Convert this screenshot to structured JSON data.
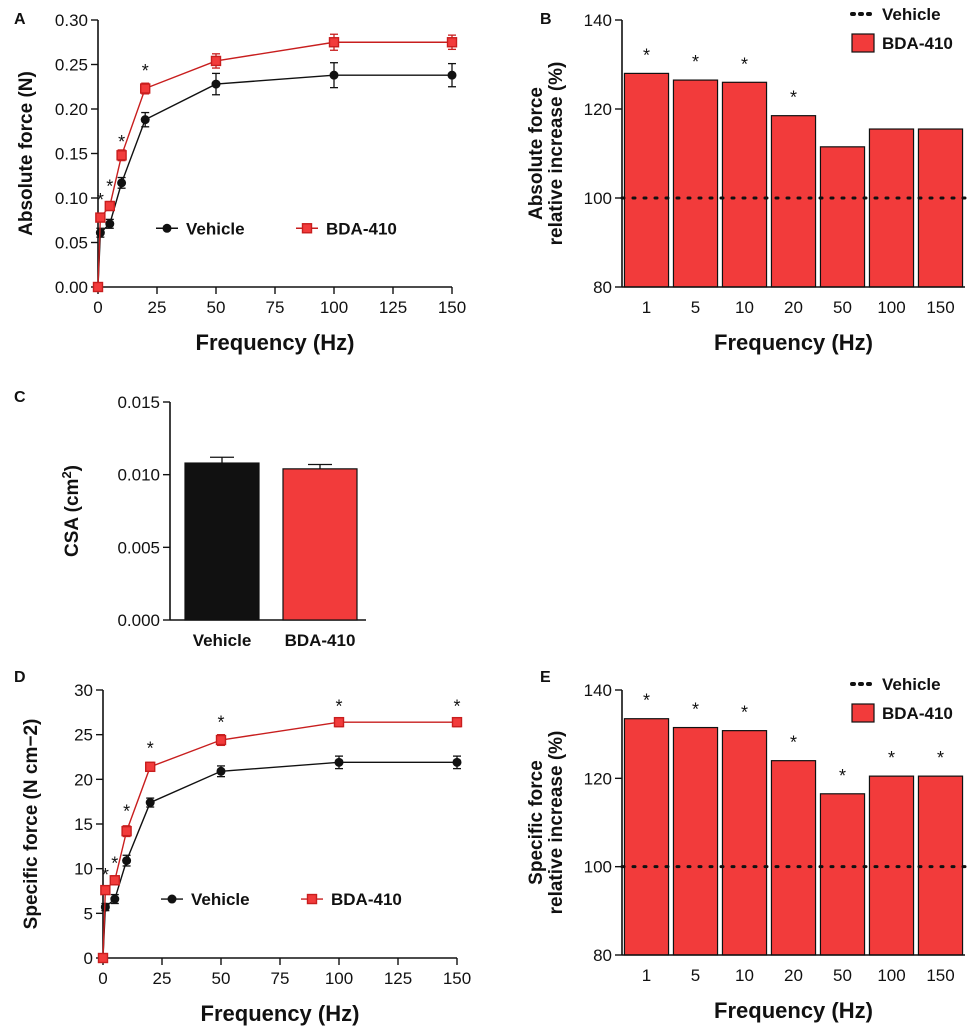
{
  "colors": {
    "vehicle": "#111111",
    "bda": "#f23b3b",
    "bda_stroke": "#c81e1e",
    "axis": "#111111"
  },
  "chart_data": [
    {
      "panel": "A",
      "type": "line",
      "xlabel": "Frequency (Hz)",
      "ylabel": "Absolute force (N)",
      "xlim": [
        0,
        150
      ],
      "ylim": [
        0,
        0.3
      ],
      "xticks": [
        "0",
        "25",
        "50",
        "75",
        "100",
        "125",
        "150"
      ],
      "yticks": [
        "0.00",
        "0.05",
        "0.10",
        "0.15",
        "0.20",
        "0.25",
        "0.30"
      ],
      "x": [
        0,
        1,
        5,
        10,
        20,
        50,
        100,
        150
      ],
      "series": [
        {
          "name": "Vehicle",
          "values": [
            0.0,
            0.061,
            0.071,
            0.117,
            0.188,
            0.228,
            0.238,
            0.238
          ],
          "errors": [
            0,
            0.005,
            0.005,
            0.006,
            0.008,
            0.012,
            0.014,
            0.013
          ]
        },
        {
          "name": "BDA-410",
          "values": [
            0.0,
            0.078,
            0.091,
            0.148,
            0.223,
            0.254,
            0.275,
            0.275
          ],
          "errors": [
            0,
            0.004,
            0.005,
            0.006,
            0.006,
            0.008,
            0.009,
            0.008
          ]
        }
      ],
      "stars": [
        {
          "x": 1,
          "y": 0.1,
          "text": "*"
        },
        {
          "x": 5,
          "y": 0.115,
          "text": "*"
        },
        {
          "x": 10,
          "y": 0.165,
          "text": "*"
        },
        {
          "x": 20,
          "y": 0.245,
          "text": "*"
        }
      ]
    },
    {
      "panel": "B",
      "type": "bar",
      "xlabel": "Frequency (Hz)",
      "ylabel": "Absolute force relative increase (%)",
      "categories": [
        "1",
        "5",
        "10",
        "20",
        "50",
        "100",
        "150"
      ],
      "values": [
        128,
        126.5,
        126,
        118.5,
        111.5,
        115.5,
        115.5
      ],
      "baseline": 100,
      "ylim": [
        80,
        140
      ],
      "yticks": [
        "80",
        "100",
        "120",
        "140"
      ],
      "stars": [
        "*",
        "*",
        "*",
        "*",
        "",
        "",
        ""
      ],
      "legend": [
        {
          "name": "Vehicle",
          "marker": "dotted-line"
        },
        {
          "name": "BDA-410",
          "marker": "box"
        }
      ]
    },
    {
      "panel": "C",
      "type": "bar",
      "xlabel": "",
      "ylabel": "CSA (cm2)",
      "categories": [
        "Vehicle",
        "BDA-410"
      ],
      "values": [
        0.0108,
        0.0104
      ],
      "errors": [
        0.0004,
        0.0003
      ],
      "ylim": [
        0,
        0.015
      ],
      "yticks": [
        "0.000",
        "0.005",
        "0.010",
        "0.015"
      ]
    },
    {
      "panel": "D",
      "type": "line",
      "xlabel": "Frequency (Hz)",
      "ylabel": "Specific force (N cm−2)",
      "xlim": [
        0,
        150
      ],
      "ylim": [
        0,
        30
      ],
      "xticks": [
        "0",
        "25",
        "50",
        "75",
        "100",
        "125",
        "150"
      ],
      "yticks": [
        "0",
        "5",
        "10",
        "15",
        "20",
        "25",
        "30"
      ],
      "x": [
        0,
        1,
        5,
        10,
        20,
        50,
        100,
        150
      ],
      "series": [
        {
          "name": "Vehicle",
          "values": [
            0.0,
            5.7,
            6.6,
            10.9,
            17.4,
            20.9,
            21.9,
            21.9
          ],
          "errors": [
            0,
            0.4,
            0.5,
            0.6,
            0.5,
            0.6,
            0.7,
            0.7
          ]
        },
        {
          "name": "BDA-410",
          "values": [
            0.0,
            7.6,
            8.7,
            14.2,
            21.4,
            24.4,
            26.4,
            26.4
          ],
          "errors": [
            0,
            0.4,
            0.5,
            0.6,
            0.5,
            0.6,
            0.5,
            0.5
          ]
        }
      ],
      "stars": [
        {
          "x": 1,
          "y": 9.5,
          "text": "*"
        },
        {
          "x": 5,
          "y": 10.8,
          "text": "*"
        },
        {
          "x": 10,
          "y": 16.6,
          "text": "*"
        },
        {
          "x": 20,
          "y": 23.7,
          "text": "*"
        },
        {
          "x": 50,
          "y": 26.6,
          "text": "*"
        },
        {
          "x": 100,
          "y": 28.4,
          "text": "*"
        },
        {
          "x": 150,
          "y": 28.4,
          "text": "*"
        }
      ]
    },
    {
      "panel": "E",
      "type": "bar",
      "xlabel": "Frequency (Hz)",
      "ylabel": "Specific force relative increase (%)",
      "categories": [
        "1",
        "5",
        "10",
        "20",
        "50",
        "100",
        "150"
      ],
      "values": [
        133.5,
        131.5,
        130.8,
        124,
        116.5,
        120.5,
        120.5
      ],
      "baseline": 100,
      "ylim": [
        80,
        140
      ],
      "yticks": [
        "80",
        "100",
        "120",
        "140"
      ],
      "stars": [
        "*",
        "*",
        "*",
        "*",
        "*",
        "*",
        "*"
      ],
      "legend": [
        {
          "name": "Vehicle",
          "marker": "dotted-line"
        },
        {
          "name": "BDA-410",
          "marker": "box"
        }
      ]
    }
  ]
}
